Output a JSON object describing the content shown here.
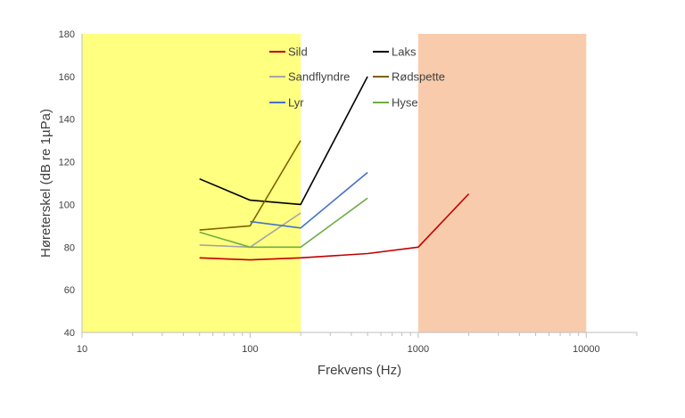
{
  "chart_data": {
    "type": "line",
    "xscale": "log",
    "xlabel": "Frekvens (Hz)",
    "ylabel": "Høreterskel (dB re 1µPa)",
    "xlim": [
      10,
      20000
    ],
    "ylim": [
      40,
      180
    ],
    "xticks": [
      10,
      100,
      1000,
      10000
    ],
    "xtick_labels": [
      "10",
      "100",
      "1000",
      "10000"
    ],
    "yticks": [
      40,
      60,
      80,
      100,
      120,
      140,
      160,
      180
    ],
    "grid": false,
    "legend_position": "top",
    "shaded_regions": [
      {
        "x_from": 10,
        "x_to": 200,
        "color": "#ffff80"
      },
      {
        "x_from": 1000,
        "x_to": 10000,
        "color": "#f8cbad"
      }
    ],
    "series": [
      {
        "name": "Sild",
        "color": "#c00000",
        "x": [
          50,
          100,
          200,
          500,
          1000,
          2000
        ],
        "y": [
          75,
          74,
          75,
          77,
          80,
          105
        ]
      },
      {
        "name": "Laks",
        "color": "#000000",
        "x": [
          50,
          100,
          200,
          500
        ],
        "y": [
          112,
          102,
          100,
          160
        ]
      },
      {
        "name": "Sandflyndre",
        "color": "#a5a5a5",
        "x": [
          50,
          100,
          200
        ],
        "y": [
          81,
          80,
          96
        ]
      },
      {
        "name": "Rødspette",
        "color": "#806000",
        "x": [
          50,
          100,
          200
        ],
        "y": [
          88,
          90,
          130
        ]
      },
      {
        "name": "Lyr",
        "color": "#4472c4",
        "x": [
          100,
          200,
          500
        ],
        "y": [
          92,
          89,
          115
        ]
      },
      {
        "name": "Hyse",
        "color": "#70ad47",
        "x": [
          50,
          100,
          200,
          500
        ],
        "y": [
          87,
          80,
          80,
          103
        ]
      }
    ]
  }
}
